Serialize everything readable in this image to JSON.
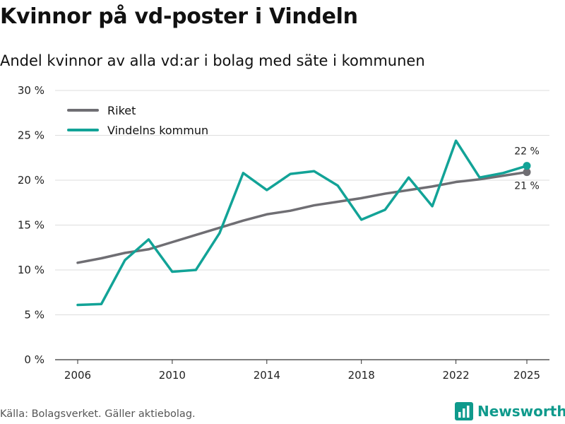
{
  "title": "Kvinnor på vd-poster i Vindeln",
  "subtitle": "Andel kvinnor av alla vd:ar i bolag med säte i kommunen",
  "source": "Källa: Bolagsverket. Gäller aktiebolag.",
  "brand": "Newsworthy",
  "colors": {
    "riket": "#6f6e73",
    "vindeln": "#12a397",
    "grid": "#dddddd",
    "brand": "#0f9a8c"
  },
  "chart_data": {
    "type": "line",
    "title": "Kvinnor på vd-poster i Vindeln",
    "subtitle": "Andel kvinnor av alla vd:ar i bolag med säte i kommunen",
    "xlabel": "",
    "ylabel": "",
    "xlim": [
      2006,
      2025
    ],
    "ylim": [
      0,
      30
    ],
    "x_ticks": [
      2006,
      2010,
      2014,
      2018,
      2022,
      2025
    ],
    "y_ticks": [
      0,
      5,
      10,
      15,
      20,
      25,
      30
    ],
    "y_tick_labels": [
      "0 %",
      "5 %",
      "10 %",
      "15 %",
      "20 %",
      "25 %",
      "30 %"
    ],
    "grid": true,
    "legend_position": "top-left",
    "x": [
      2006,
      2007,
      2008,
      2009,
      2010,
      2011,
      2012,
      2013,
      2014,
      2015,
      2016,
      2017,
      2018,
      2019,
      2020,
      2021,
      2022,
      2023,
      2024,
      2025
    ],
    "series": [
      {
        "name": "Riket",
        "values": [
          10.8,
          11.3,
          11.9,
          12.3,
          13.1,
          13.9,
          14.7,
          15.5,
          16.2,
          16.6,
          17.2,
          17.6,
          18.0,
          18.5,
          18.9,
          19.3,
          19.8,
          20.1,
          20.5,
          20.9
        ],
        "end_label": "21 %"
      },
      {
        "name": "Vindelns kommun",
        "values": [
          6.1,
          6.2,
          11.1,
          13.4,
          9.8,
          10.0,
          14.1,
          20.8,
          18.9,
          20.7,
          21.0,
          19.4,
          15.6,
          16.7,
          20.3,
          17.1,
          24.4,
          20.3,
          20.8,
          21.6
        ],
        "end_label": "22 %"
      }
    ]
  }
}
